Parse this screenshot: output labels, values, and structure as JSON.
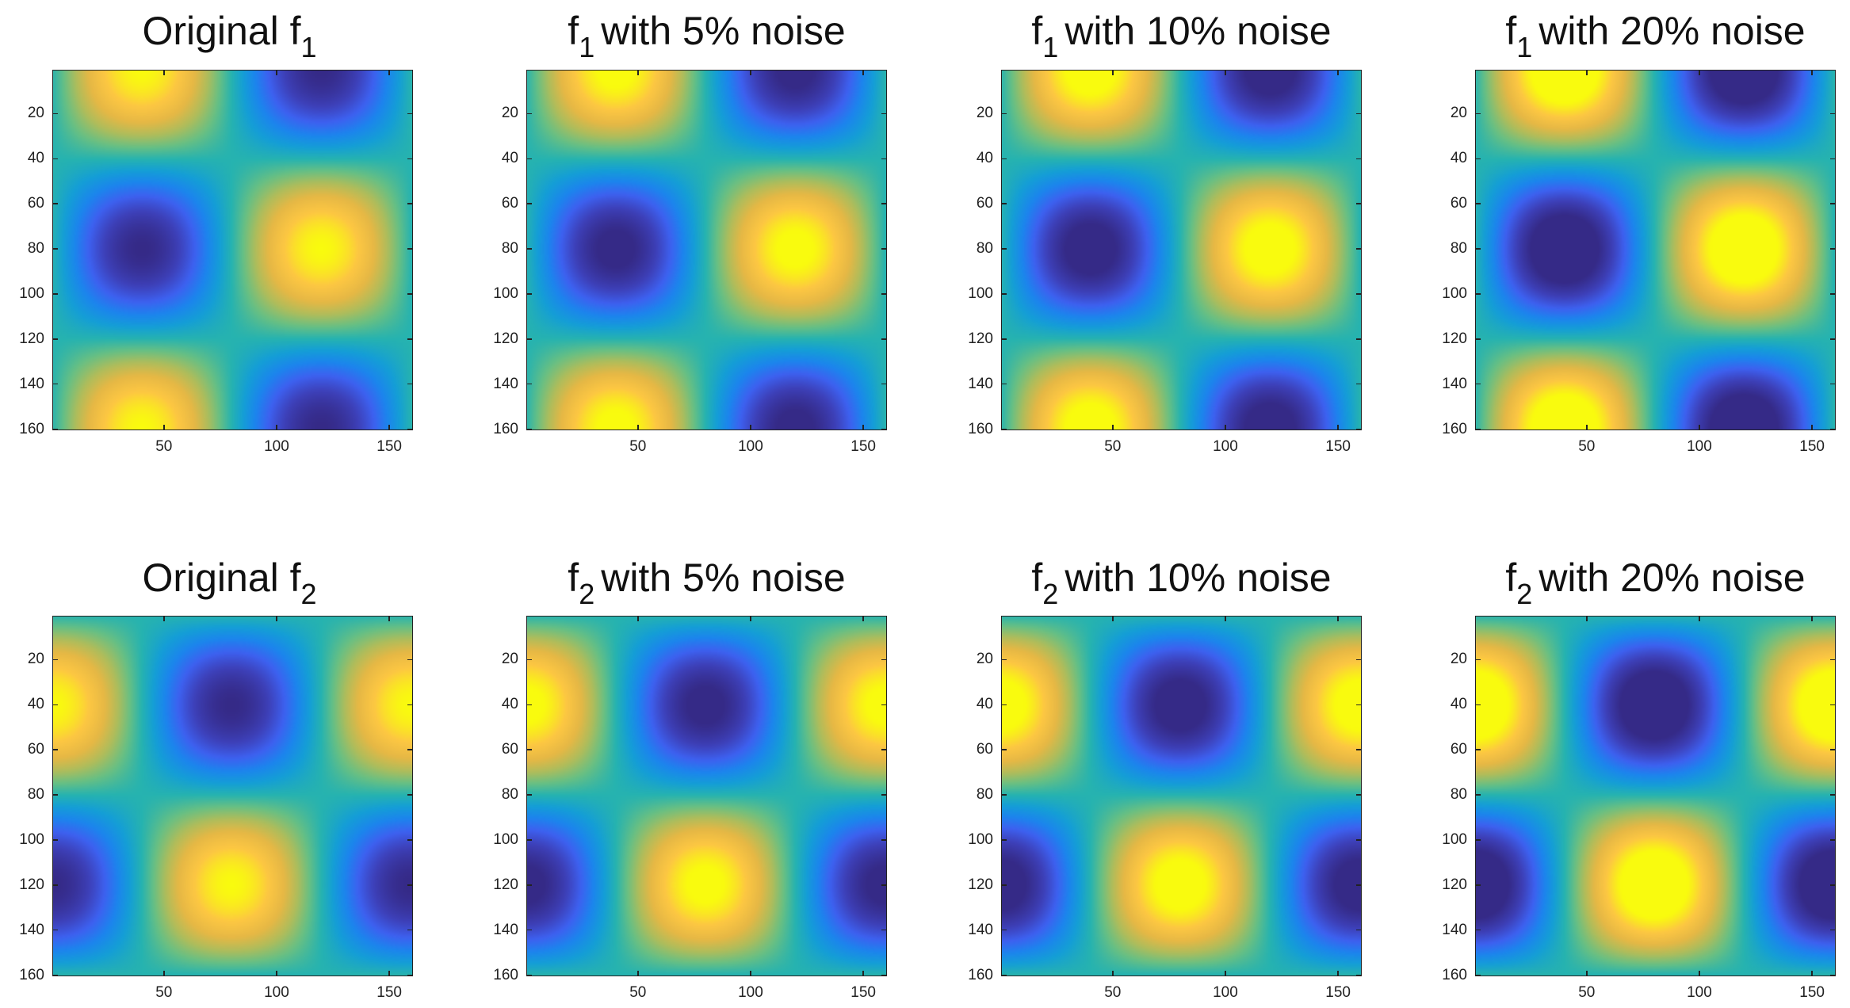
{
  "chart_data": [
    {
      "type": "heatmap",
      "title": {
        "prefix": "Original f",
        "sub": "1",
        "suffix": ""
      },
      "function": "f1",
      "noise_percent": 0,
      "xlim": [
        0.5,
        160.5
      ],
      "ylim": [
        0.5,
        160.5
      ],
      "xticks": [
        50,
        100,
        150
      ],
      "yticks": [
        20,
        40,
        60,
        80,
        100,
        120,
        140,
        160
      ],
      "y_direction": "reverse",
      "colormap": "parula"
    },
    {
      "type": "heatmap",
      "title": {
        "prefix": "f",
        "sub": "1",
        "suffix": "with 5% noise"
      },
      "function": "f1",
      "noise_percent": 5,
      "xlim": [
        0.5,
        160.5
      ],
      "ylim": [
        0.5,
        160.5
      ],
      "xticks": [
        50,
        100,
        150
      ],
      "yticks": [
        20,
        40,
        60,
        80,
        100,
        120,
        140,
        160
      ],
      "y_direction": "reverse",
      "colormap": "parula"
    },
    {
      "type": "heatmap",
      "title": {
        "prefix": "f",
        "sub": "1",
        "suffix": "with 10% noise"
      },
      "function": "f1",
      "noise_percent": 10,
      "xlim": [
        0.5,
        160.5
      ],
      "ylim": [
        0.5,
        160.5
      ],
      "xticks": [
        50,
        100,
        150
      ],
      "yticks": [
        20,
        40,
        60,
        80,
        100,
        120,
        140,
        160
      ],
      "y_direction": "reverse",
      "colormap": "parula"
    },
    {
      "type": "heatmap",
      "title": {
        "prefix": "f",
        "sub": "1",
        "suffix": "with 20% noise"
      },
      "function": "f1",
      "noise_percent": 20,
      "xlim": [
        0.5,
        160.5
      ],
      "ylim": [
        0.5,
        160.5
      ],
      "xticks": [
        50,
        100,
        150
      ],
      "yticks": [
        20,
        40,
        60,
        80,
        100,
        120,
        140,
        160
      ],
      "y_direction": "reverse",
      "colormap": "parula"
    },
    {
      "type": "heatmap",
      "title": {
        "prefix": "Original f",
        "sub": "2",
        "suffix": ""
      },
      "function": "f2",
      "noise_percent": 0,
      "xlim": [
        0.5,
        160.5
      ],
      "ylim": [
        0.5,
        160.5
      ],
      "xticks": [
        50,
        100,
        150
      ],
      "yticks": [
        20,
        40,
        60,
        80,
        100,
        120,
        140,
        160
      ],
      "y_direction": "reverse",
      "colormap": "parula"
    },
    {
      "type": "heatmap",
      "title": {
        "prefix": "f",
        "sub": "2",
        "suffix": "with 5% noise"
      },
      "function": "f2",
      "noise_percent": 5,
      "xlim": [
        0.5,
        160.5
      ],
      "ylim": [
        0.5,
        160.5
      ],
      "xticks": [
        50,
        100,
        150
      ],
      "yticks": [
        20,
        40,
        60,
        80,
        100,
        120,
        140,
        160
      ],
      "y_direction": "reverse",
      "colormap": "parula"
    },
    {
      "type": "heatmap",
      "title": {
        "prefix": "f",
        "sub": "2",
        "suffix": "with 10% noise"
      },
      "function": "f2",
      "noise_percent": 10,
      "xlim": [
        0.5,
        160.5
      ],
      "ylim": [
        0.5,
        160.5
      ],
      "xticks": [
        50,
        100,
        150
      ],
      "yticks": [
        20,
        40,
        60,
        80,
        100,
        120,
        140,
        160
      ],
      "y_direction": "reverse",
      "colormap": "parula"
    },
    {
      "type": "heatmap",
      "title": {
        "prefix": "f",
        "sub": "2",
        "suffix": "with 20% noise"
      },
      "function": "f2",
      "noise_percent": 20,
      "xlim": [
        0.5,
        160.5
      ],
      "ylim": [
        0.5,
        160.5
      ],
      "xticks": [
        50,
        100,
        150
      ],
      "yticks": [
        20,
        40,
        60,
        80,
        100,
        120,
        140,
        160
      ],
      "y_direction": "reverse",
      "colormap": "parula"
    }
  ]
}
